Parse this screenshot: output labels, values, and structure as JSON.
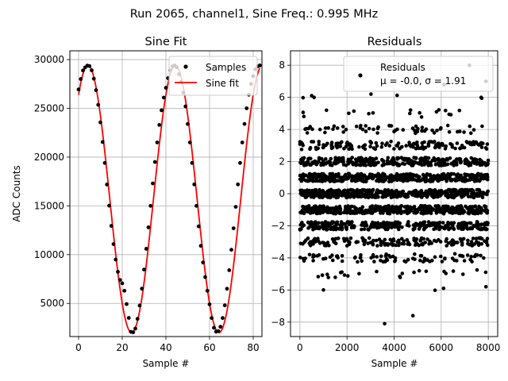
{
  "figure": {
    "suptitle": "Run 2065, channel1, Sine Freq.: 0.995 MHz"
  },
  "chart_data": [
    {
      "type": "scatter+line",
      "title": "Sine Fit",
      "xlabel": "Sample #",
      "ylabel": "ADC Counts",
      "xlim": [
        -4,
        84
      ],
      "ylim": [
        1600,
        30900
      ],
      "xticks": [
        0,
        20,
        40,
        60,
        80
      ],
      "yticks": [
        5000,
        10000,
        15000,
        20000,
        25000,
        30000
      ],
      "grid": true,
      "legend": {
        "placement": "top-right",
        "entries": [
          "Samples",
          "Sine fit"
        ]
      },
      "fit": {
        "amplitude": 13700,
        "offset": 15700,
        "period_samples": 40.0,
        "peak_sample": 4.3
      },
      "series": [
        {
          "name": "Samples",
          "style": "black-dots",
          "x": [
            0,
            1,
            2,
            3,
            4,
            5,
            6,
            7,
            8,
            9,
            10,
            11,
            12,
            13,
            14,
            15,
            16,
            17,
            18,
            19,
            20,
            21,
            22,
            23,
            24,
            25,
            26,
            27,
            28,
            29,
            30,
            31,
            32,
            33,
            34,
            35,
            36,
            37,
            38,
            39,
            40,
            41,
            42,
            43,
            44,
            45,
            46,
            47,
            48,
            49,
            50,
            51,
            52,
            53,
            54,
            55,
            56,
            57,
            58,
            59,
            60,
            61,
            62,
            63,
            64,
            65,
            66,
            67,
            68,
            69,
            70,
            71,
            72,
            73,
            74,
            75,
            76,
            77,
            78,
            79,
            80,
            81,
            82,
            83
          ],
          "y": [
            26940,
            28010,
            28880,
            29200,
            29380,
            29340,
            28900,
            28040,
            26870,
            25360,
            23560,
            21550,
            19400,
            17190,
            15020,
            12950,
            11080,
            9490,
            8240,
            7400,
            7060,
            6300,
            4930,
            3510,
            2080,
            2030,
            2420,
            3420,
            4780,
            6510,
            8470,
            10600,
            12800,
            15000,
            17300,
            19500,
            21500,
            23300,
            24800,
            26100,
            27100,
            28100,
            28900,
            29300,
            29400,
            29200,
            28500,
            27700,
            26600,
            25200,
            23400,
            21500,
            19400,
            17200,
            15000,
            12900,
            10900,
            9200,
            7700,
            6300,
            4900,
            3500,
            2500,
            2100,
            2150,
            2600,
            3500,
            4800,
            6500,
            8400,
            10500,
            12700,
            14900,
            17200,
            19400,
            21500,
            23400,
            25000,
            26400,
            27500,
            28300,
            29000,
            29300,
            29400
          ]
        },
        {
          "name": "Sine fit",
          "style": "red-line",
          "color": "#ff0000"
        }
      ]
    },
    {
      "type": "scatter",
      "title": "Residuals",
      "xlabel": "Sample #",
      "ylabel": "",
      "xlim": [
        -400,
        8400
      ],
      "ylim": [
        -8.9,
        8.9
      ],
      "xticks": [
        0,
        2000,
        4000,
        6000,
        8000
      ],
      "yticks": [
        -8,
        -6,
        -4,
        -2,
        0,
        2,
        4,
        6,
        8
      ],
      "grid": true,
      "legend": {
        "placement": "top-right",
        "entries": [
          "Residuals",
          "μ = -0.0, σ = 1.91"
        ]
      },
      "stats": {
        "mean": -0.0,
        "sigma": 1.91,
        "n_points": 8000
      },
      "series": [
        {
          "name": "Residuals",
          "style": "black-dots"
        }
      ],
      "outliers": [
        {
          "x": 3600,
          "y": -8.1
        },
        {
          "x": 4800,
          "y": -7.6
        },
        {
          "x": 7200,
          "y": 8.0
        },
        {
          "x": 500,
          "y": 6.1
        },
        {
          "x": 600,
          "y": 6.0
        },
        {
          "x": 7700,
          "y": 6.0
        },
        {
          "x": 7900,
          "y": 7.0
        },
        {
          "x": 7900,
          "y": -5.8
        },
        {
          "x": 1000,
          "y": -6.0
        },
        {
          "x": 5800,
          "y": 5.1
        },
        {
          "x": 6100,
          "y": -5.9
        }
      ]
    }
  ]
}
